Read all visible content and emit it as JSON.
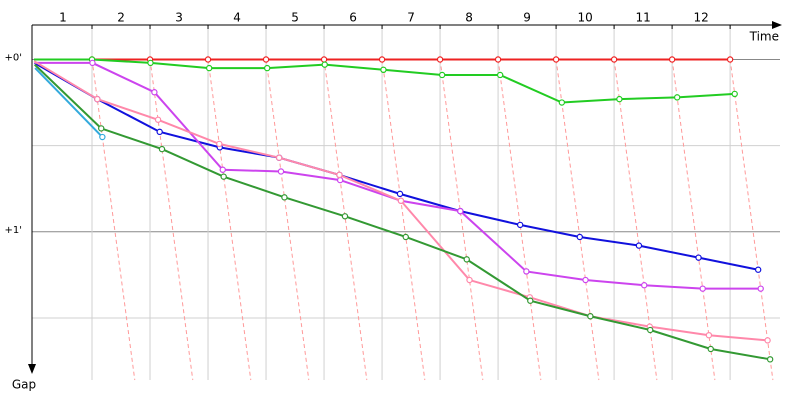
{
  "chart_data": {
    "type": "line",
    "x_label": "Time",
    "y_label": "Gap",
    "x": [
      0,
      1,
      2,
      3,
      4,
      5,
      6,
      7,
      8,
      9,
      10,
      11,
      12
    ],
    "xlim": [
      0,
      12.86
    ],
    "xticks": [
      1,
      2,
      3,
      4,
      5,
      6,
      7,
      8,
      9,
      10,
      11,
      12
    ],
    "ylim": [
      -0.2,
      1.86
    ],
    "yticks": [
      {
        "value": 0,
        "label": "+0'"
      },
      {
        "value": 1,
        "label": "+1'"
      }
    ],
    "minor_yticks": [
      0.5,
      1.5
    ],
    "grid": true,
    "connector_color": "#ff9999",
    "series": [
      {
        "color": "#ee2222",
        "values": [
          0,
          0,
          0,
          0,
          0,
          0,
          0,
          0,
          0,
          0,
          0,
          0,
          0
        ]
      },
      {
        "color": "#22cc22",
        "values": [
          0,
          0,
          0.02,
          0.05,
          0.05,
          0.03,
          0.06,
          0.09,
          0.09,
          0.25,
          0.23,
          0.22,
          0.2
        ]
      },
      {
        "color": "#1111dd",
        "values": [
          0.02,
          0.23,
          0.42,
          0.51,
          0.57,
          0.67,
          0.78,
          0.88,
          0.96,
          1.03,
          1.08,
          1.15,
          1.22
        ]
      },
      {
        "color": "#cc44ee",
        "values": [
          0.02,
          0.02,
          0.19,
          0.64,
          0.65,
          0.7,
          0.82,
          0.88,
          1.23,
          1.28,
          1.31,
          1.33,
          1.33
        ]
      },
      {
        "color": "#ff88aa",
        "values": [
          0.01,
          0.23,
          0.35,
          0.49,
          0.57,
          0.67,
          0.82,
          1.28,
          1.38,
          1.49,
          1.55,
          1.6,
          1.63
        ]
      },
      {
        "color": "#339933",
        "values": [
          0.03,
          0.4,
          0.52,
          0.68,
          0.8,
          0.91,
          1.03,
          1.16,
          1.4,
          1.49,
          1.57,
          1.68,
          1.74
        ]
      },
      {
        "color": "#33aadd",
        "values": [
          0.05,
          0.45,
          null,
          null,
          null,
          null,
          null,
          null,
          null,
          null,
          null,
          null,
          null
        ]
      }
    ]
  }
}
